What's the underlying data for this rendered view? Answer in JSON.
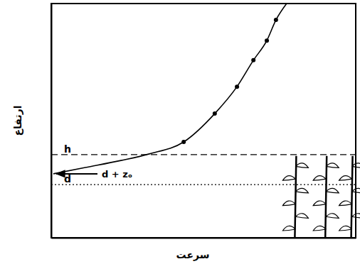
{
  "chart_data": {
    "type": "line",
    "x_label": "سرعت",
    "y_label": "ارتفاع",
    "x": [
      0.7,
      11.2,
      22.9,
      32.2,
      43.5,
      53.7,
      61.0,
      66.4,
      70.8,
      73.8,
      77.3
    ],
    "series": [
      {
        "type": "line",
        "color": "#000000",
        "line_style": "solid",
        "marker": "none",
        "values": [
          27.3,
          30.0,
          33.0,
          35.8,
          40.9,
          53.0,
          64.5,
          75.8,
          84.2,
          93.0,
          100
        ]
      },
      {
        "type": "scatter",
        "color": "#000000",
        "marker": "circle",
        "values": [
          null,
          null,
          null,
          null,
          40.9,
          53.0,
          64.5,
          75.8,
          84.2,
          93.0,
          null
        ]
      }
    ],
    "xlim": [
      0,
      100
    ],
    "ylim": [
      0,
      100
    ],
    "tick_labels": false,
    "grid": false,
    "reference_lines": [
      {
        "value": 35.5,
        "label": "h",
        "line_style": "dashed"
      },
      {
        "value": 22.7,
        "label": "d",
        "line_style": "dotted"
      }
    ],
    "annotations": [
      {
        "text": "d + zₒ",
        "x": 0.7,
        "y": 27.3
      }
    ]
  }
}
